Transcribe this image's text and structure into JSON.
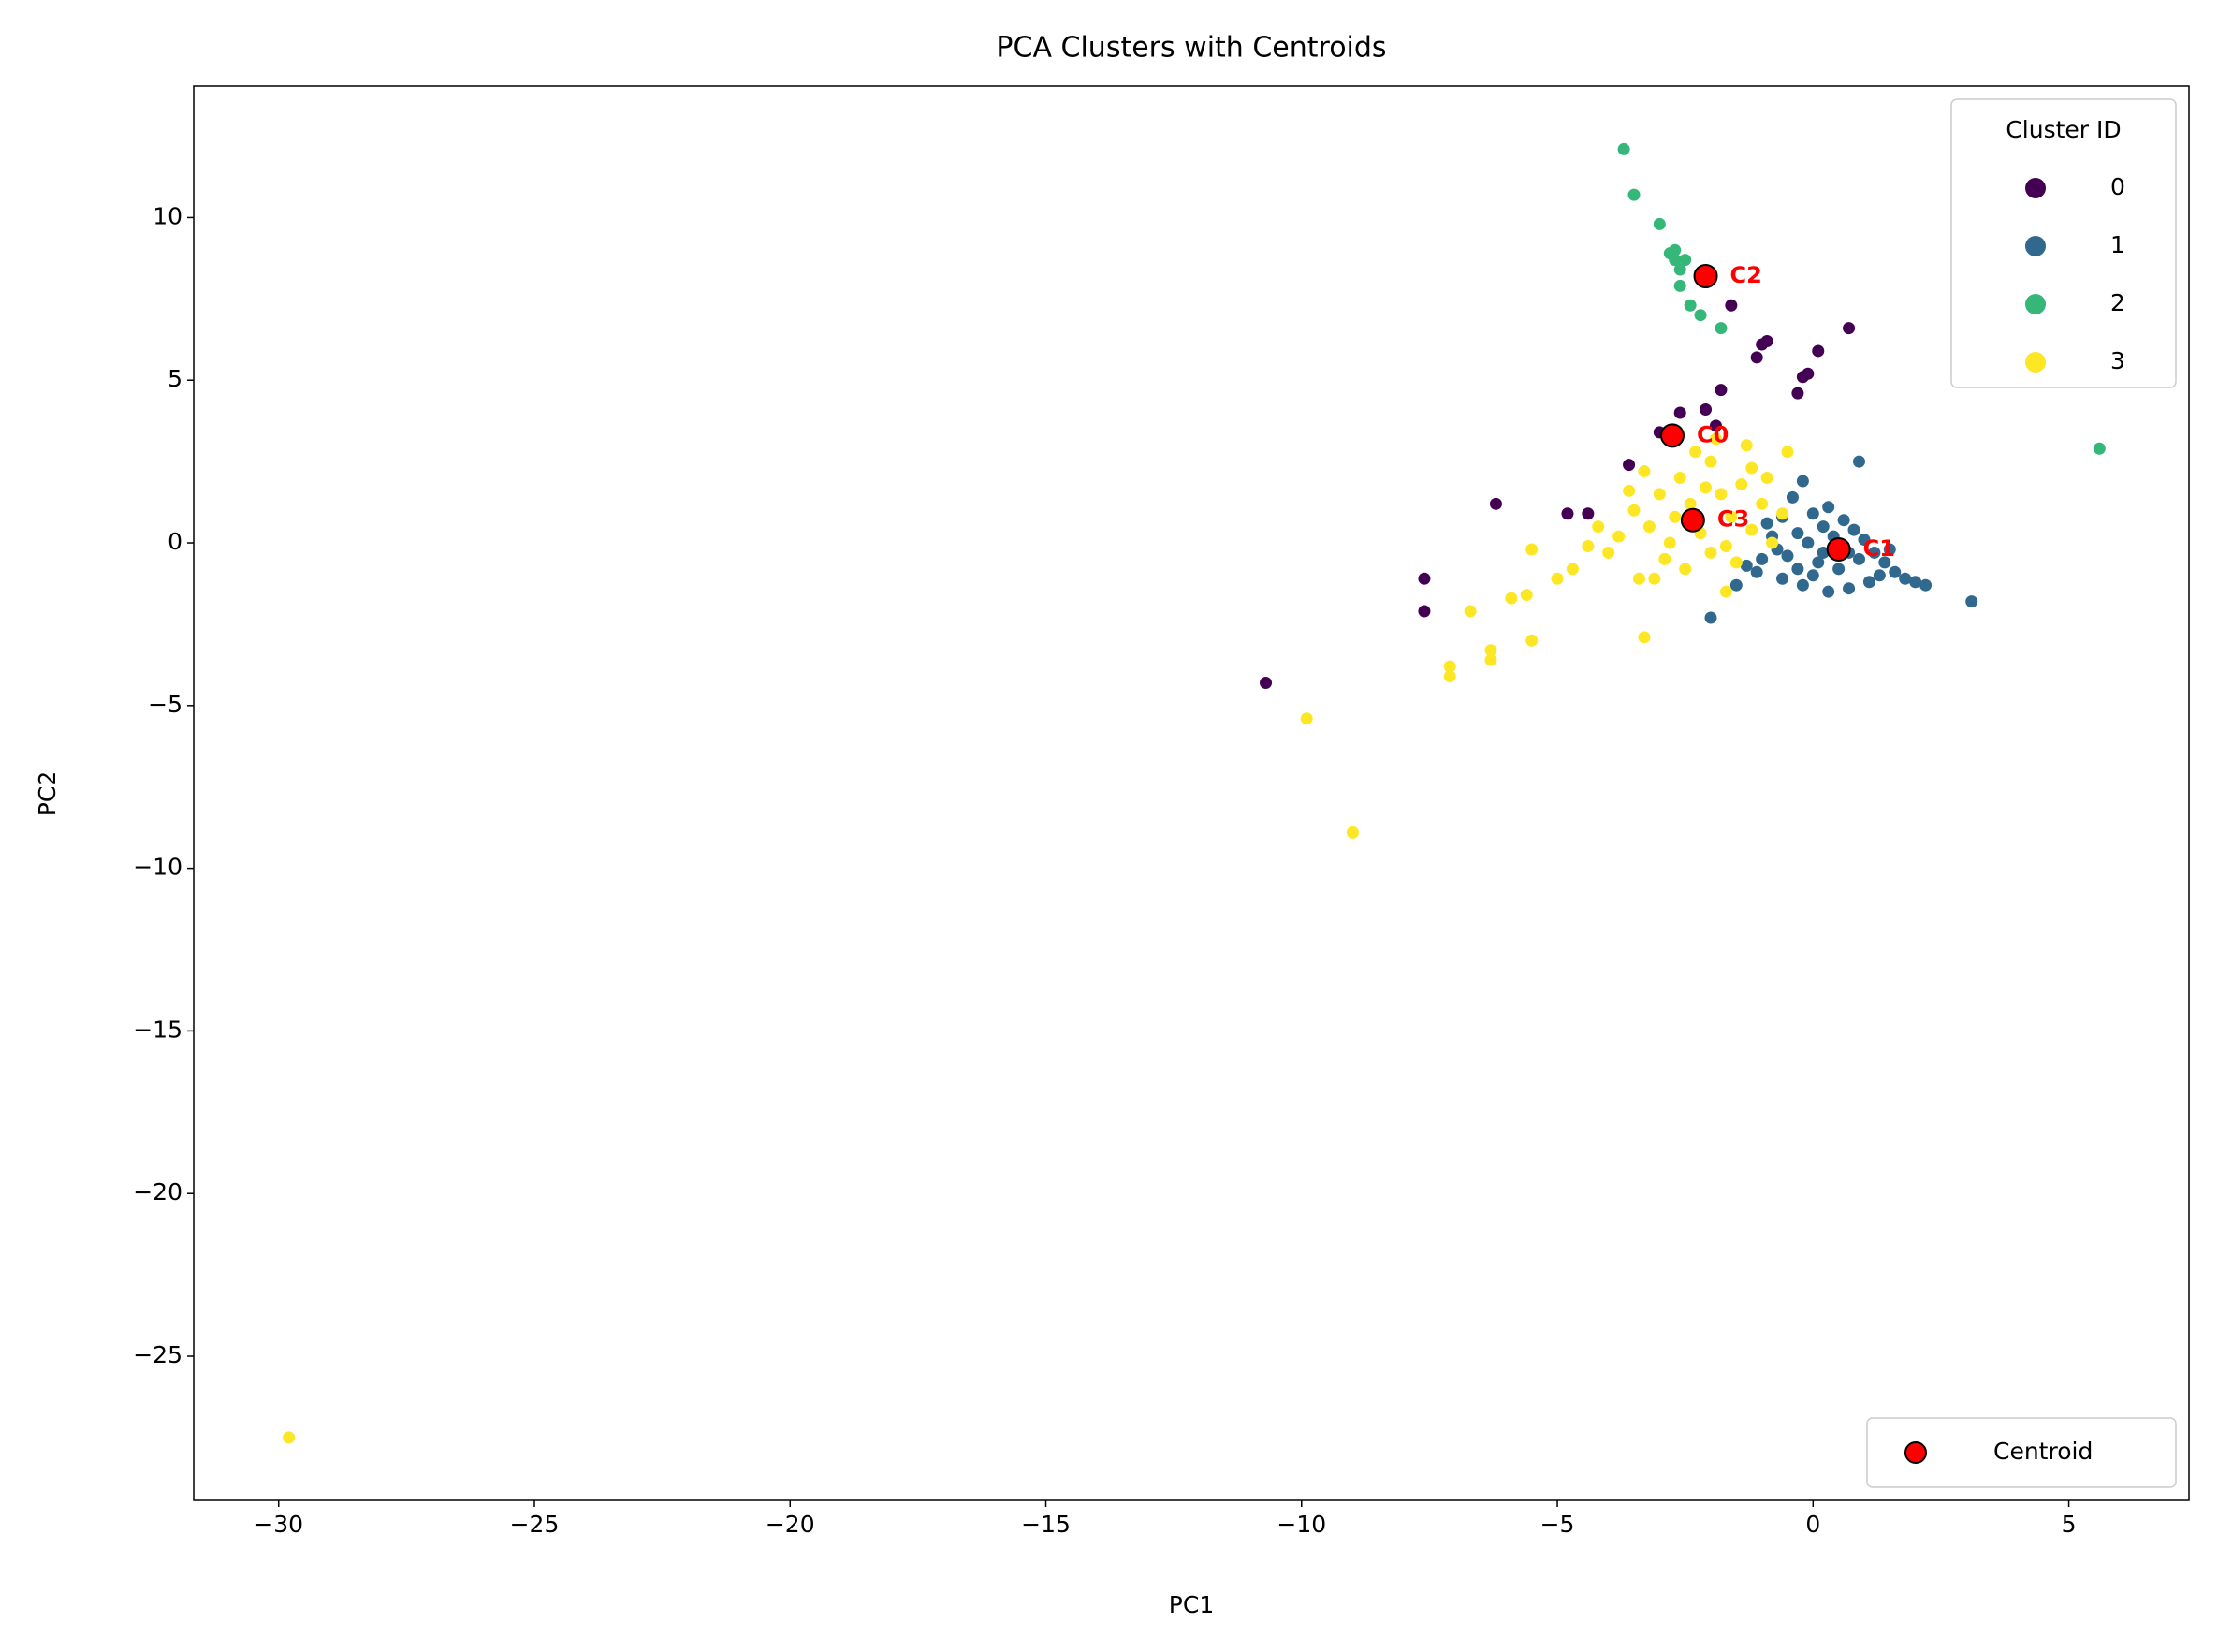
{
  "chart_data": {
    "type": "scatter",
    "title": "PCA Clusters with Centroids",
    "x_label": "PC1",
    "y_label": "PC2",
    "xlim": [
      -31.66,
      7.35
    ],
    "ylim": [
      -29.43,
      14.04
    ],
    "xticks": [
      {
        "value": -30,
        "label": "−30"
      },
      {
        "value": -25,
        "label": "−25"
      },
      {
        "value": -20,
        "label": "−20"
      },
      {
        "value": -15,
        "label": "−15"
      },
      {
        "value": -10,
        "label": "−10"
      },
      {
        "value": -5,
        "label": "−5"
      },
      0,
      5
    ],
    "yticks": [
      {
        "value": -25,
        "label": "−25"
      },
      {
        "value": -20,
        "label": "−20"
      },
      {
        "value": -15,
        "label": "−15"
      },
      {
        "value": -10,
        "label": "−10"
      },
      {
        "value": -5,
        "label": "−5"
      },
      0,
      5,
      10
    ],
    "legend_title": "Cluster ID",
    "legend": "upper right",
    "series": [
      {
        "name": "0",
        "color": "#440154",
        "x": [
          -10.7,
          -7.6,
          -7.6,
          -6.2,
          -4.8,
          -4.4,
          -3.6,
          -3.0,
          -2.6,
          -2.1,
          -1.9,
          -1.6,
          -1.8,
          -1.1,
          -1.0,
          -0.9,
          -0.3,
          -0.2,
          -0.1,
          0.1,
          0.7
        ],
        "y": [
          -4.3,
          -1.1,
          -2.1,
          1.2,
          0.9,
          0.9,
          2.4,
          3.4,
          4.0,
          4.1,
          3.6,
          7.3,
          4.7,
          5.7,
          6.1,
          6.2,
          4.6,
          5.1,
          5.2,
          5.9,
          6.6
        ]
      },
      {
        "name": "1",
        "color": "#31688e",
        "x": [
          -1.0,
          -0.8,
          -0.6,
          -0.4,
          -0.2,
          -0.3,
          0,
          0.2,
          0.4,
          0.6,
          0.8,
          1.0,
          1.2,
          1.4,
          1.6,
          1.8,
          2.0,
          2.2,
          1.1,
          0.7,
          0.3,
          -0.2,
          -0.6,
          -1.1,
          -0.5,
          0.1,
          0.5,
          0.9,
          -0.1,
          0.3,
          -0.7,
          1.5,
          0.0,
          -0.9,
          0.6,
          1.3,
          -1.3,
          0.9,
          3.1,
          -2.0,
          -1.5,
          0.2,
          -0.3,
          0.7
        ],
        "y": [
          -0.5,
          0.2,
          0.8,
          1.4,
          1.9,
          0.3,
          0.9,
          0.5,
          0.2,
          -0.1,
          0.4,
          0.1,
          -0.3,
          -0.6,
          -0.9,
          -1.1,
          -1.2,
          -1.3,
          -1.2,
          -1.4,
          -1.5,
          -1.3,
          -1.1,
          -0.9,
          -0.4,
          -0.6,
          -0.8,
          -0.5,
          0.0,
          1.1,
          -0.2,
          -0.2,
          -1.0,
          0.6,
          0.7,
          -1.0,
          -0.7,
          2.5,
          -1.8,
          -2.3,
          -1.3,
          -0.3,
          -0.8,
          -0.3
        ]
      },
      {
        "name": "2",
        "color": "#35b779",
        "x": [
          -3.7,
          -3.5,
          -3.0,
          -2.8,
          -2.7,
          -2.6,
          -2.5,
          -2.6,
          -2.4,
          -2.2,
          -1.8,
          5.6,
          -2.7
        ],
        "y": [
          12.1,
          10.7,
          9.8,
          8.9,
          8.7,
          8.4,
          8.7,
          7.9,
          7.3,
          7.0,
          6.6,
          2.9,
          9.0
        ]
      },
      {
        "name": "3",
        "color": "#fde725",
        "x": [
          -29.8,
          -9.9,
          -9.0,
          -7.1,
          -7.1,
          -6.7,
          -6.3,
          -6.3,
          -5.5,
          -5.9,
          -5.6,
          -5.5,
          -5.0,
          -4.7,
          -4.4,
          -3.3,
          -1.7,
          -3.5,
          -3.2,
          -3.0,
          -2.8,
          -2.6,
          -2.4,
          -2.2,
          -2.0,
          -1.8,
          -1.6,
          -1.4,
          -1.2,
          -1.0,
          -0.8,
          -0.6,
          -0.5,
          -2.9,
          -3.8,
          -4.2,
          -4.0,
          -3.4,
          -3.1,
          -2.5,
          -2.0,
          -1.5,
          -1.2,
          -2.3,
          -1.9,
          -3.6,
          -2.7,
          -1.7,
          -0.9,
          -3.3,
          -2.1,
          -1.3
        ],
        "y": [
          -27.5,
          -5.4,
          -8.9,
          -3.8,
          -4.1,
          -2.1,
          -3.3,
          -3.6,
          -3.0,
          -1.7,
          -1.6,
          -0.2,
          -1.1,
          -0.8,
          -0.1,
          -2.9,
          -1.5,
          1.0,
          0.5,
          1.5,
          0.0,
          2.0,
          1.2,
          0.3,
          2.5,
          1.5,
          0.8,
          1.8,
          0.4,
          1.2,
          0.0,
          0.9,
          2.8,
          -0.5,
          0.2,
          0.5,
          -0.3,
          -1.1,
          -1.1,
          -0.8,
          -0.3,
          -0.6,
          2.3,
          2.8,
          3.2,
          1.6,
          0.8,
          -0.1,
          2.0,
          2.2,
          1.7,
          3.0
        ]
      }
    ],
    "centroids": {
      "name": "Centroid",
      "color": "#ff0000",
      "legend": "lower right",
      "x": [
        -2.75,
        0.5,
        -2.1,
        -2.35
      ],
      "y": [
        3.3,
        -0.2,
        8.2,
        0.7
      ],
      "labels": [
        "C0",
        "C1",
        "C2",
        "C3"
      ]
    }
  }
}
